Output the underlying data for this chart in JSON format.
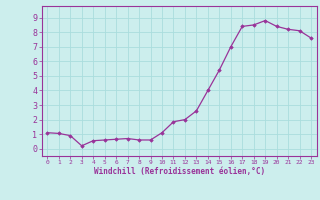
{
  "x": [
    0,
    1,
    2,
    3,
    4,
    5,
    6,
    7,
    8,
    9,
    10,
    11,
    12,
    13,
    14,
    15,
    16,
    17,
    18,
    19,
    20,
    21,
    22,
    23
  ],
  "y": [
    1.1,
    1.05,
    0.9,
    0.2,
    0.55,
    0.6,
    0.65,
    0.7,
    0.6,
    0.6,
    1.1,
    1.85,
    2.0,
    2.6,
    4.0,
    5.4,
    7.0,
    8.4,
    8.5,
    8.8,
    8.4,
    8.2,
    8.1,
    7.6
  ],
  "line_color": "#993399",
  "marker": "D",
  "marker_size": 1.8,
  "bg_color": "#cceeed",
  "grid_color": "#aadddd",
  "xlabel": "Windchill (Refroidissement éolien,°C)",
  "xlabel_color": "#993399",
  "tick_color": "#993399",
  "label_color": "#993399",
  "xlim": [
    -0.5,
    23.5
  ],
  "ylim": [
    -0.5,
    9.8
  ],
  "yticks": [
    0,
    1,
    2,
    3,
    4,
    5,
    6,
    7,
    8,
    9
  ],
  "xticks": [
    0,
    1,
    2,
    3,
    4,
    5,
    6,
    7,
    8,
    9,
    10,
    11,
    12,
    13,
    14,
    15,
    16,
    17,
    18,
    19,
    20,
    21,
    22,
    23
  ],
  "spine_color": "#993399",
  "xlabel_fontsize": 5.5,
  "tick_fontsize_x": 4.5,
  "tick_fontsize_y": 6.0
}
